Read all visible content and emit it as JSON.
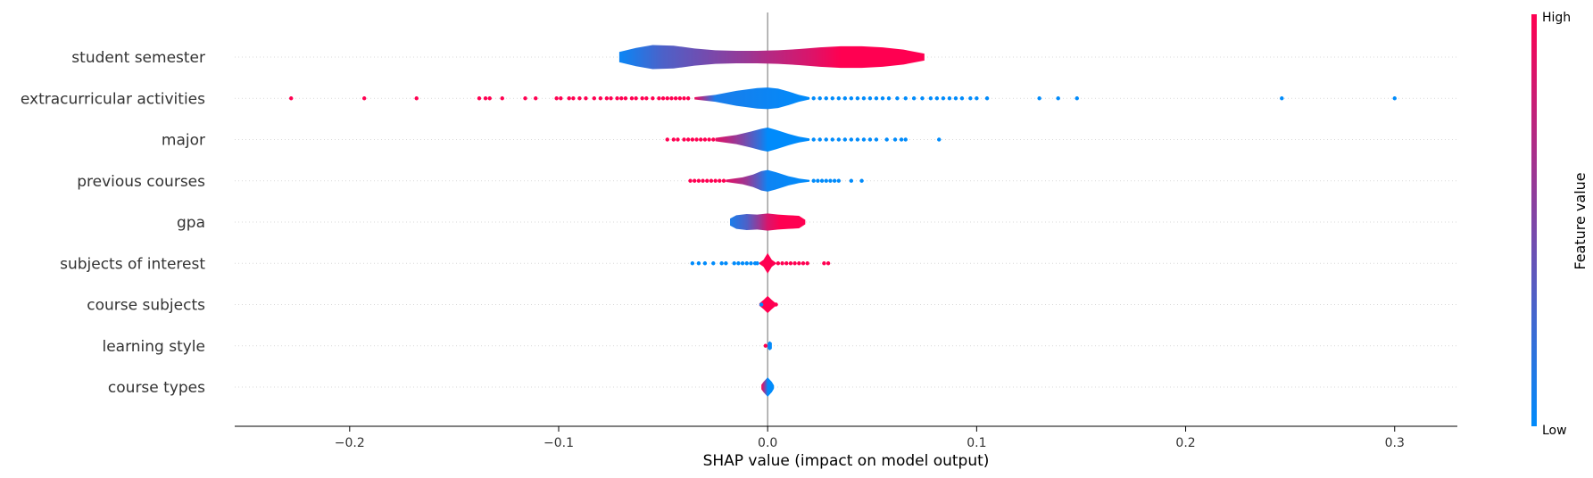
{
  "chart_data": {
    "type": "violin",
    "xlabel": "SHAP value (impact on model output)",
    "ylabel": "",
    "xlim": [
      -0.255,
      0.33
    ],
    "x_ticks": [
      {
        "value": -0.2,
        "label": "−0.2"
      },
      {
        "value": -0.1,
        "label": "−0.1"
      },
      {
        "value": 0.0,
        "label": "0.0"
      },
      {
        "value": 0.1,
        "label": "0.1"
      },
      {
        "value": 0.2,
        "label": "0.2"
      },
      {
        "value": 0.3,
        "label": "0.3"
      }
    ],
    "features": [
      {
        "name": "student semester",
        "violin_extent": [
          -0.071,
          0.075
        ],
        "width_profile": [
          [
            -0.071,
            0.18
          ],
          [
            -0.063,
            0.32
          ],
          [
            -0.055,
            0.42
          ],
          [
            -0.045,
            0.4
          ],
          [
            -0.035,
            0.3
          ],
          [
            -0.025,
            0.24
          ],
          [
            -0.015,
            0.22
          ],
          [
            -0.005,
            0.22
          ],
          [
            0.005,
            0.24
          ],
          [
            0.015,
            0.28
          ],
          [
            0.025,
            0.34
          ],
          [
            0.035,
            0.38
          ],
          [
            0.045,
            0.38
          ],
          [
            0.055,
            0.34
          ],
          [
            0.065,
            0.26
          ],
          [
            0.075,
            0.12
          ]
        ],
        "color_stops": [
          [
            -0.07,
            0.05
          ],
          [
            -0.05,
            0.3
          ],
          [
            -0.03,
            0.45
          ],
          [
            -0.01,
            0.6
          ],
          [
            0.0,
            0.7
          ],
          [
            0.02,
            0.85
          ],
          [
            0.035,
            1.0
          ],
          [
            0.075,
            1.0
          ]
        ],
        "outlier_points": []
      },
      {
        "name": "extracurricular activities",
        "violin_extent": [
          -0.035,
          0.02
        ],
        "width_profile": [
          [
            -0.035,
            0.04
          ],
          [
            -0.025,
            0.12
          ],
          [
            -0.015,
            0.26
          ],
          [
            -0.005,
            0.36
          ],
          [
            0.0,
            0.38
          ],
          [
            0.005,
            0.34
          ],
          [
            0.01,
            0.24
          ],
          [
            0.015,
            0.12
          ],
          [
            0.02,
            0.04
          ]
        ],
        "color_stops": [
          [
            -0.035,
            0.95
          ],
          [
            -0.025,
            0.1
          ],
          [
            0.02,
            0.0
          ]
        ],
        "outlier_points": [
          [
            -0.228,
            1
          ],
          [
            -0.193,
            1
          ],
          [
            -0.168,
            1
          ],
          [
            -0.138,
            1
          ],
          [
            -0.135,
            1
          ],
          [
            -0.133,
            1
          ],
          [
            -0.127,
            1
          ],
          [
            -0.116,
            1
          ],
          [
            -0.111,
            1
          ],
          [
            -0.101,
            1
          ],
          [
            -0.099,
            1
          ],
          [
            -0.095,
            1
          ],
          [
            -0.093,
            1
          ],
          [
            -0.09,
            1
          ],
          [
            -0.087,
            1
          ],
          [
            -0.083,
            1
          ],
          [
            -0.08,
            1
          ],
          [
            -0.077,
            1
          ],
          [
            -0.075,
            1
          ],
          [
            -0.072,
            1
          ],
          [
            -0.07,
            1
          ],
          [
            -0.068,
            1
          ],
          [
            -0.065,
            1
          ],
          [
            -0.063,
            1
          ],
          [
            -0.06,
            1
          ],
          [
            -0.058,
            1
          ],
          [
            -0.055,
            1
          ],
          [
            -0.052,
            1
          ],
          [
            -0.05,
            1
          ],
          [
            -0.048,
            1
          ],
          [
            -0.046,
            1
          ],
          [
            -0.044,
            1
          ],
          [
            -0.042,
            1
          ],
          [
            -0.04,
            1
          ],
          [
            -0.038,
            1
          ],
          [
            0.022,
            0
          ],
          [
            0.025,
            0
          ],
          [
            0.028,
            0
          ],
          [
            0.031,
            0
          ],
          [
            0.034,
            0
          ],
          [
            0.037,
            0
          ],
          [
            0.04,
            0
          ],
          [
            0.043,
            0
          ],
          [
            0.046,
            0
          ],
          [
            0.049,
            0
          ],
          [
            0.052,
            0
          ],
          [
            0.055,
            0
          ],
          [
            0.058,
            0
          ],
          [
            0.062,
            0
          ],
          [
            0.066,
            0
          ],
          [
            0.07,
            0
          ],
          [
            0.074,
            0
          ],
          [
            0.078,
            0
          ],
          [
            0.081,
            0
          ],
          [
            0.084,
            0
          ],
          [
            0.087,
            0
          ],
          [
            0.09,
            0
          ],
          [
            0.093,
            0
          ],
          [
            0.097,
            0
          ],
          [
            0.1,
            0
          ],
          [
            0.105,
            0
          ],
          [
            0.13,
            0
          ],
          [
            0.139,
            0
          ],
          [
            0.148,
            0
          ],
          [
            0.246,
            0
          ],
          [
            0.3,
            0
          ]
        ]
      },
      {
        "name": "major",
        "violin_extent": [
          -0.025,
          0.02
        ],
        "width_profile": [
          [
            -0.025,
            0.06
          ],
          [
            -0.015,
            0.16
          ],
          [
            -0.008,
            0.28
          ],
          [
            -0.003,
            0.38
          ],
          [
            0.0,
            0.42
          ],
          [
            0.004,
            0.34
          ],
          [
            0.01,
            0.2
          ],
          [
            0.015,
            0.1
          ],
          [
            0.02,
            0.04
          ]
        ],
        "color_stops": [
          [
            -0.025,
            0.9
          ],
          [
            -0.012,
            0.5
          ],
          [
            -0.004,
            0.2
          ],
          [
            0.0,
            0.0
          ],
          [
            0.02,
            0.0
          ]
        ],
        "outlier_points": [
          [
            -0.048,
            1
          ],
          [
            -0.045,
            1
          ],
          [
            -0.043,
            1
          ],
          [
            -0.04,
            1
          ],
          [
            -0.038,
            1
          ],
          [
            -0.036,
            1
          ],
          [
            -0.034,
            1
          ],
          [
            -0.032,
            1
          ],
          [
            -0.03,
            1
          ],
          [
            -0.028,
            1
          ],
          [
            -0.026,
            1
          ],
          [
            0.022,
            0
          ],
          [
            0.025,
            0
          ],
          [
            0.028,
            0
          ],
          [
            0.031,
            0
          ],
          [
            0.034,
            0
          ],
          [
            0.037,
            0
          ],
          [
            0.04,
            0
          ],
          [
            0.043,
            0
          ],
          [
            0.046,
            0
          ],
          [
            0.049,
            0
          ],
          [
            0.052,
            0
          ],
          [
            0.057,
            0
          ],
          [
            0.061,
            0
          ],
          [
            0.064,
            0
          ],
          [
            0.066,
            0
          ],
          [
            0.082,
            0
          ]
        ]
      },
      {
        "name": "previous courses",
        "violin_extent": [
          -0.02,
          0.02
        ],
        "width_profile": [
          [
            -0.02,
            0.04
          ],
          [
            -0.012,
            0.12
          ],
          [
            -0.007,
            0.22
          ],
          [
            -0.003,
            0.34
          ],
          [
            0.0,
            0.38
          ],
          [
            0.004,
            0.3
          ],
          [
            0.01,
            0.16
          ],
          [
            0.015,
            0.08
          ],
          [
            0.02,
            0.03
          ]
        ],
        "color_stops": [
          [
            -0.02,
            0.9
          ],
          [
            -0.01,
            0.6
          ],
          [
            -0.004,
            0.3
          ],
          [
            0.0,
            0.05
          ],
          [
            0.02,
            0.0
          ]
        ],
        "outlier_points": [
          [
            -0.037,
            1
          ],
          [
            -0.035,
            1
          ],
          [
            -0.033,
            1
          ],
          [
            -0.031,
            1
          ],
          [
            -0.029,
            1
          ],
          [
            -0.027,
            1
          ],
          [
            -0.025,
            1
          ],
          [
            -0.023,
            1
          ],
          [
            -0.021,
            1
          ],
          [
            0.022,
            0
          ],
          [
            0.024,
            0
          ],
          [
            0.026,
            0
          ],
          [
            0.028,
            0
          ],
          [
            0.03,
            0
          ],
          [
            0.032,
            0
          ],
          [
            0.034,
            0
          ],
          [
            0.04,
            0
          ],
          [
            0.045,
            0
          ]
        ]
      },
      {
        "name": "gpa",
        "violin_extent": [
          -0.018,
          0.018
        ],
        "width_profile": [
          [
            -0.018,
            0.12
          ],
          [
            -0.015,
            0.24
          ],
          [
            -0.01,
            0.28
          ],
          [
            -0.005,
            0.26
          ],
          [
            0.0,
            0.3
          ],
          [
            0.005,
            0.26
          ],
          [
            0.01,
            0.24
          ],
          [
            0.015,
            0.22
          ],
          [
            0.018,
            0.08
          ]
        ],
        "color_stops": [
          [
            -0.018,
            0.1
          ],
          [
            -0.01,
            0.3
          ],
          [
            -0.004,
            0.6
          ],
          [
            0.0,
            0.85
          ],
          [
            0.006,
            1.0
          ],
          [
            0.018,
            1.0
          ]
        ],
        "outlier_points": []
      },
      {
        "name": "subjects of interest",
        "violin_extent": [
          -0.004,
          0.004
        ],
        "width_profile": [
          [
            -0.004,
            0.02
          ],
          [
            -0.002,
            0.12
          ],
          [
            0.0,
            0.36
          ],
          [
            0.002,
            0.12
          ],
          [
            0.004,
            0.02
          ]
        ],
        "color_stops": [
          [
            -0.004,
            1.0
          ],
          [
            0.004,
            1.0
          ]
        ],
        "outlier_points": [
          [
            -0.036,
            0
          ],
          [
            -0.033,
            0
          ],
          [
            -0.03,
            0
          ],
          [
            -0.026,
            0
          ],
          [
            -0.022,
            0
          ],
          [
            -0.02,
            0
          ],
          [
            -0.016,
            0
          ],
          [
            -0.014,
            0
          ],
          [
            -0.012,
            0
          ],
          [
            -0.01,
            0
          ],
          [
            -0.008,
            0
          ],
          [
            -0.006,
            0
          ],
          [
            -0.005,
            0
          ],
          [
            0.005,
            1
          ],
          [
            0.007,
            1
          ],
          [
            0.009,
            1
          ],
          [
            0.011,
            1
          ],
          [
            0.013,
            1
          ],
          [
            0.015,
            1
          ],
          [
            0.017,
            1
          ],
          [
            0.019,
            1
          ],
          [
            0.027,
            1
          ],
          [
            0.029,
            1
          ]
        ]
      },
      {
        "name": "course subjects",
        "violin_extent": [
          -0.004,
          0.004
        ],
        "width_profile": [
          [
            -0.004,
            0.04
          ],
          [
            -0.002,
            0.16
          ],
          [
            0.0,
            0.3
          ],
          [
            0.002,
            0.16
          ],
          [
            0.004,
            0.04
          ]
        ],
        "color_stops": [
          [
            -0.004,
            1.0
          ],
          [
            0.004,
            1.0
          ]
        ],
        "outlier_points": [
          [
            -0.003,
            0
          ],
          [
            0.004,
            1
          ]
        ]
      },
      {
        "name": "learning style",
        "violin_extent": [
          0.0,
          0.002
        ],
        "width_profile": [
          [
            0.0,
            0.1
          ],
          [
            0.001,
            0.16
          ],
          [
            0.002,
            0.1
          ]
        ],
        "color_stops": [
          [
            0.0,
            0.05
          ],
          [
            0.002,
            0.0
          ]
        ],
        "outlier_points": [
          [
            -0.001,
            1
          ]
        ]
      },
      {
        "name": "course types",
        "violin_extent": [
          -0.003,
          0.003
        ],
        "width_profile": [
          [
            -0.003,
            0.08
          ],
          [
            -0.002,
            0.18
          ],
          [
            0.0,
            0.34
          ],
          [
            0.002,
            0.18
          ],
          [
            0.003,
            0.06
          ]
        ],
        "color_stops": [
          [
            -0.003,
            1.0
          ],
          [
            -0.001,
            0.4
          ],
          [
            0.0,
            0.0
          ],
          [
            0.003,
            0.0
          ]
        ],
        "outlier_points": []
      }
    ],
    "colorbar": {
      "title": "Feature value",
      "high_label": "High",
      "low_label": "Low",
      "low_color": "#008bfb",
      "high_color": "#ff0051"
    },
    "zero_line_color": "#999999",
    "grid_line_color": "#d9d9d9"
  }
}
